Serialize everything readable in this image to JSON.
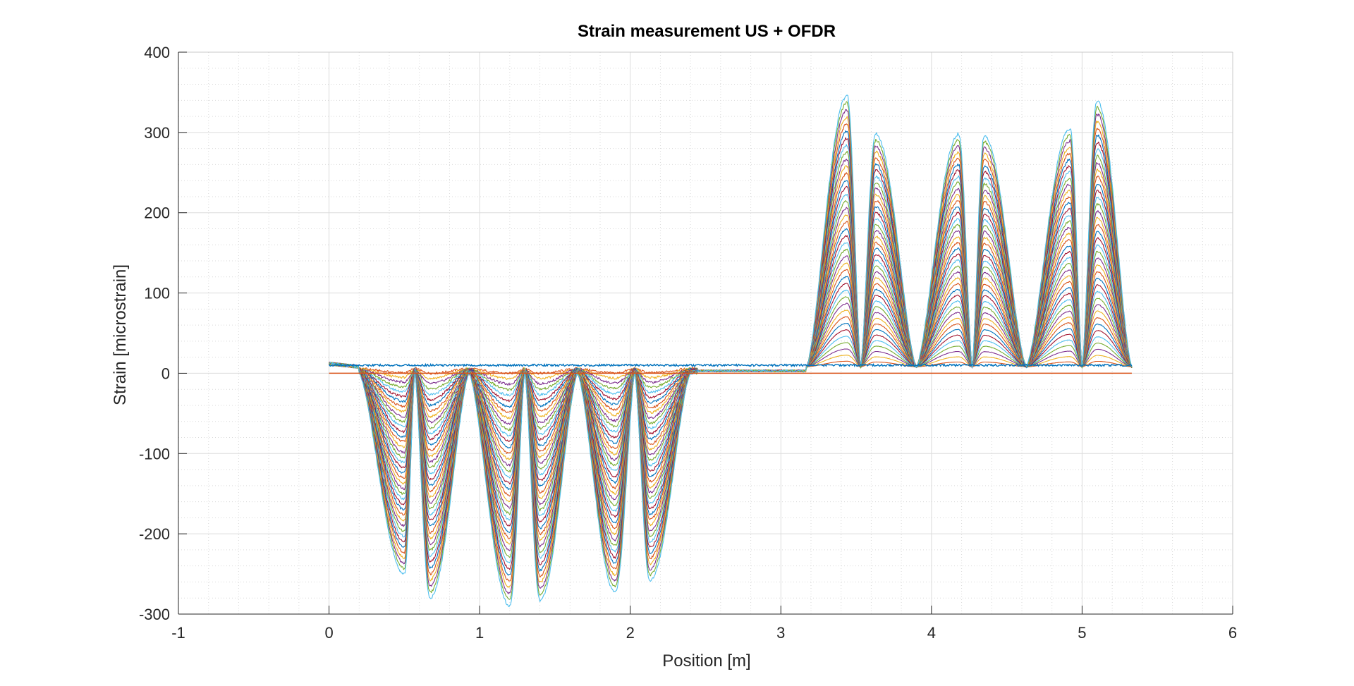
{
  "chart_data": {
    "type": "line",
    "title": "Strain measurement US + OFDR",
    "xlabel": "Position [m]",
    "ylabel": "Strain [microstrain]",
    "xlim": [
      -1,
      6
    ],
    "ylim": [
      -300,
      400
    ],
    "xticks": [
      -1,
      0,
      1,
      2,
      3,
      4,
      5,
      6
    ],
    "xtick_labels": [
      "-1",
      "0",
      "1",
      "2",
      "3",
      "4",
      "5",
      "6"
    ],
    "yticks": [
      -300,
      -200,
      -100,
      0,
      100,
      200,
      300,
      400
    ],
    "ytick_labels": [
      "-300",
      "-200",
      "-100",
      "0",
      "100",
      "200",
      "300",
      "400"
    ],
    "grid": "on (major and minor)",
    "series_count": 40,
    "x_range_of_series": [
      0,
      5.33
    ],
    "baseline_series": {
      "value": 0,
      "color": "#D95319"
    },
    "reference_series": {
      "value_approx": 10,
      "color": "#0072BD"
    },
    "troughs": [
      {
        "x": 0.5,
        "min_value": -250
      },
      {
        "x": 0.67,
        "min_value": -280
      },
      {
        "x": 1.2,
        "min_value": -290
      },
      {
        "x": 1.4,
        "min_value": -283
      },
      {
        "x": 1.9,
        "min_value": -273
      },
      {
        "x": 2.13,
        "min_value": -258
      }
    ],
    "zero_crossings_negative_region": [
      0.57,
      0.93,
      1.3,
      1.65,
      2.03
    ],
    "peaks": [
      {
        "x": 3.44,
        "max_value": 338
      },
      {
        "x": 3.63,
        "max_value": 290
      },
      {
        "x": 4.18,
        "max_value": 290
      },
      {
        "x": 4.35,
        "max_value": 288
      },
      {
        "x": 4.92,
        "max_value": 297
      },
      {
        "x": 5.1,
        "max_value": 332
      }
    ],
    "dips_positive_region": [
      3.53,
      3.9,
      4.27,
      4.63,
      5.0
    ],
    "colors": [
      "#0072BD",
      "#D95319",
      "#EDB120",
      "#7E2F8E",
      "#77AC30",
      "#4DBEEE",
      "#A2142F"
    ]
  }
}
